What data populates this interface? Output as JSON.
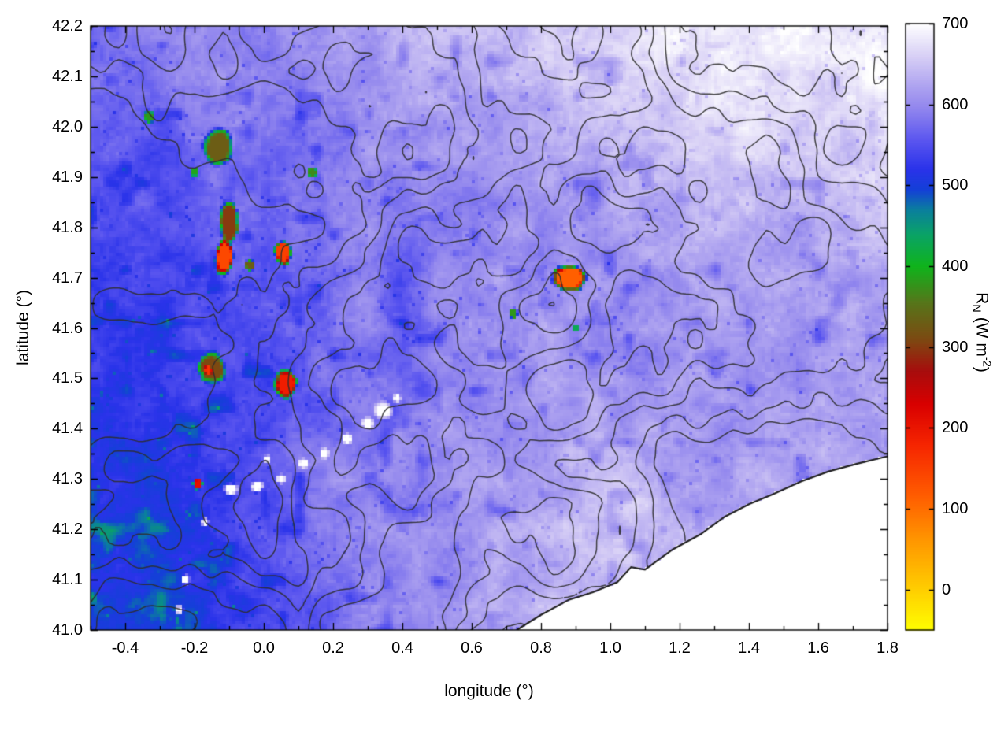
{
  "figure": {
    "background": "#ffffff",
    "frame_color": "#000000",
    "contour_color": "#2e2e2e"
  },
  "chart_data": {
    "type": "heatmap",
    "title": "",
    "xlabel": "longitude (°)",
    "ylabel": "latitude (°)",
    "x_range": [
      -0.5,
      1.8
    ],
    "y_range": [
      41.0,
      42.2
    ],
    "x_tick_labels": [
      "-0.4",
      "-0.2",
      "0.0",
      "0.2",
      "0.4",
      "0.6",
      "0.8",
      "1.0",
      "1.2",
      "1.4",
      "1.6",
      "1.8"
    ],
    "x_minor_step": 0.1,
    "y_tick_labels": [
      "41.0",
      "41.1",
      "41.2",
      "41.3",
      "41.4",
      "41.5",
      "41.6",
      "41.7",
      "41.8",
      "41.9",
      "42.0",
      "42.1",
      "42.2"
    ],
    "y_minor_step": 0.05,
    "colorbar": {
      "min": -50,
      "max": 700,
      "tick_labels": [
        "0",
        "100",
        "200",
        "300",
        "400",
        "500",
        "600",
        "700"
      ],
      "label_text": "RN (W m-2)",
      "label": {
        "base": "R",
        "sub": "N",
        "unit_pre": " (W m",
        "sup": "-2",
        "unit_post": ")"
      },
      "stops": [
        [
          -50,
          "#ffff00"
        ],
        [
          0,
          "#ffcf00"
        ],
        [
          60,
          "#ff9800"
        ],
        [
          120,
          "#ff5a00"
        ],
        [
          180,
          "#f62500"
        ],
        [
          230,
          "#d90000"
        ],
        [
          270,
          "#a80d0d"
        ],
        [
          310,
          "#7d4a12"
        ],
        [
          355,
          "#57761a"
        ],
        [
          400,
          "#10b41c"
        ],
        [
          440,
          "#0aa368"
        ],
        [
          470,
          "#0b7f9e"
        ],
        [
          495,
          "#1440d8"
        ],
        [
          520,
          "#2a33ea"
        ],
        [
          555,
          "#5a55f0"
        ],
        [
          595,
          "#9186ee"
        ],
        [
          625,
          "#b1a6f1"
        ],
        [
          660,
          "#d8d0f6"
        ],
        [
          700,
          "#ffffff"
        ]
      ]
    },
    "grid": {
      "lon0": -0.5,
      "dlon": 0.1,
      "lat0": 42.2,
      "dlat": 0.1,
      "values": [
        [
          585,
          590,
          588,
          596,
          602,
          598,
          594,
          604,
          615,
          635,
          648,
          652,
          640,
          652,
          660,
          668,
          676,
          684,
          692,
          694,
          688,
          684,
          690,
          696
        ],
        [
          578,
          583,
          580,
          592,
          598,
          594,
          590,
          600,
          610,
          622,
          630,
          626,
          634,
          642,
          650,
          658,
          664,
          672,
          682,
          686,
          678,
          672,
          682,
          692
        ],
        [
          562,
          572,
          556,
          578,
          590,
          586,
          582,
          596,
          606,
          602,
          612,
          608,
          618,
          624,
          632,
          642,
          652,
          658,
          668,
          672,
          662,
          658,
          668,
          678
        ],
        [
          552,
          562,
          546,
          562,
          580,
          576,
          572,
          590,
          600,
          596,
          602,
          596,
          606,
          612,
          616,
          622,
          632,
          638,
          642,
          648,
          642,
          638,
          648,
          658
        ],
        [
          546,
          552,
          540,
          556,
          570,
          566,
          576,
          586,
          596,
          585,
          596,
          592,
          602,
          606,
          602,
          612,
          616,
          622,
          626,
          632,
          626,
          622,
          632,
          642
        ],
        [
          540,
          546,
          536,
          550,
          560,
          556,
          570,
          580,
          590,
          560,
          600,
          606,
          612,
          602,
          596,
          606,
          612,
          616,
          622,
          626,
          622,
          616,
          622,
          632
        ],
        [
          536,
          540,
          530,
          546,
          550,
          546,
          560,
          576,
          586,
          556,
          596,
          602,
          606,
          612,
          606,
          602,
          606,
          612,
          616,
          622,
          616,
          612,
          616,
          626
        ],
        [
          526,
          530,
          520,
          536,
          540,
          536,
          550,
          570,
          580,
          562,
          596,
          602,
          606,
          612,
          616,
          606,
          602,
          606,
          612,
          616,
          612,
          606,
          612,
          622
        ],
        [
          516,
          520,
          510,
          526,
          530,
          540,
          556,
          576,
          590,
          596,
          602,
          606,
          612,
          616,
          622,
          616,
          612,
          606,
          612,
          616,
          622,
          616,
          622,
          626
        ],
        [
          510,
          516,
          506,
          520,
          535,
          560,
          580,
          600,
          592,
          596,
          602,
          606,
          616,
          626,
          636,
          646,
          642,
          626,
          616,
          622,
          626,
          622,
          626,
          632
        ],
        [
          506,
          510,
          500,
          516,
          530,
          546,
          560,
          580,
          596,
          602,
          606,
          612,
          622,
          632,
          642,
          650,
          646,
          632,
          622,
          626,
          632,
          626,
          632,
          636
        ],
        [
          500,
          506,
          496,
          510,
          526,
          540,
          556,
          576,
          590,
          600,
          606,
          616,
          626,
          636,
          646,
          652,
          646,
          636,
          626,
          632,
          636,
          632,
          636,
          640
        ],
        [
          496,
          500,
          490,
          506,
          520,
          536,
          550,
          570,
          586,
          600,
          612,
          622,
          632,
          642,
          650,
          656,
          650,
          640,
          630,
          636,
          640,
          636,
          640,
          646
        ]
      ]
    },
    "hotspots": [
      {
        "lon": -0.13,
        "lat": 41.96,
        "rx": 0.045,
        "ry": 0.04,
        "value": 330
      },
      {
        "lon": -0.33,
        "lat": 42.02,
        "rx": 0.016,
        "ry": 0.013,
        "value": 380
      },
      {
        "lon": -0.2,
        "lat": 41.91,
        "rx": 0.013,
        "ry": 0.011,
        "value": 390
      },
      {
        "lon": 0.14,
        "lat": 41.91,
        "rx": 0.016,
        "ry": 0.013,
        "value": 370
      },
      {
        "lon": -0.1,
        "lat": 41.81,
        "rx": 0.03,
        "ry": 0.05,
        "value": 300
      },
      {
        "lon": -0.115,
        "lat": 41.74,
        "rx": 0.03,
        "ry": 0.038,
        "value": 140
      },
      {
        "lon": 0.055,
        "lat": 41.75,
        "rx": 0.027,
        "ry": 0.027,
        "value": 150
      },
      {
        "lon": -0.04,
        "lat": 41.725,
        "rx": 0.015,
        "ry": 0.012,
        "value": 330
      },
      {
        "lon": 0.88,
        "lat": 41.7,
        "rx": 0.055,
        "ry": 0.026,
        "value": 115
      },
      {
        "lon": 0.72,
        "lat": 41.63,
        "rx": 0.014,
        "ry": 0.012,
        "value": 380
      },
      {
        "lon": 0.9,
        "lat": 41.6,
        "rx": 0.012,
        "ry": 0.01,
        "value": 430
      },
      {
        "lon": -0.15,
        "lat": 41.52,
        "rx": 0.042,
        "ry": 0.034,
        "value": 310
      },
      {
        "lon": -0.16,
        "lat": 41.515,
        "rx": 0.012,
        "ry": 0.01,
        "value": 160
      },
      {
        "lon": 0.065,
        "lat": 41.49,
        "rx": 0.034,
        "ry": 0.031,
        "value": 190
      },
      {
        "lon": -0.19,
        "lat": 41.29,
        "rx": 0.016,
        "ry": 0.013,
        "value": 210
      }
    ],
    "white_patches": [
      {
        "lon": 0.345,
        "lat": 41.435,
        "rx": 0.03,
        "ry": 0.02
      },
      {
        "lon": 0.3,
        "lat": 41.41,
        "rx": 0.022,
        "ry": 0.015
      },
      {
        "lon": 0.24,
        "lat": 41.38,
        "rx": 0.018,
        "ry": 0.013
      },
      {
        "lon": 0.175,
        "lat": 41.35,
        "rx": 0.016,
        "ry": 0.012
      },
      {
        "lon": 0.115,
        "lat": 41.33,
        "rx": 0.018,
        "ry": 0.012
      },
      {
        "lon": 0.05,
        "lat": 41.3,
        "rx": 0.016,
        "ry": 0.011
      },
      {
        "lon": -0.02,
        "lat": 41.285,
        "rx": 0.02,
        "ry": 0.012
      },
      {
        "lon": -0.095,
        "lat": 41.28,
        "rx": 0.022,
        "ry": 0.013
      },
      {
        "lon": 0.01,
        "lat": 41.34,
        "rx": 0.012,
        "ry": 0.009
      },
      {
        "lon": -0.17,
        "lat": 41.215,
        "rx": 0.012,
        "ry": 0.01
      },
      {
        "lon": -0.225,
        "lat": 41.1,
        "rx": 0.014,
        "ry": 0.011
      },
      {
        "lon": -0.245,
        "lat": 41.04,
        "rx": 0.014,
        "ry": 0.011
      },
      {
        "lon": 0.385,
        "lat": 41.46,
        "rx": 0.014,
        "ry": 0.011
      }
    ],
    "coastline": [
      [
        0.73,
        41.0
      ],
      [
        0.8,
        41.03
      ],
      [
        0.88,
        41.06
      ],
      [
        0.95,
        41.075
      ],
      [
        1.02,
        41.095
      ],
      [
        1.06,
        41.125
      ],
      [
        1.1,
        41.12
      ],
      [
        1.18,
        41.16
      ],
      [
        1.26,
        41.19
      ],
      [
        1.33,
        41.225
      ],
      [
        1.4,
        41.25
      ],
      [
        1.47,
        41.27
      ],
      [
        1.55,
        41.295
      ],
      [
        1.63,
        41.315
      ],
      [
        1.71,
        41.33
      ],
      [
        1.8,
        41.345
      ]
    ],
    "contours": {
      "seed": 11,
      "levels": [
        0.4,
        0.48,
        0.56,
        0.64,
        0.72
      ],
      "fx": 2.3,
      "fy": 3.1
    },
    "texture": {
      "amp_fine": 12,
      "amp_blotch": 18,
      "vein_threshold": 0.3,
      "vein_depth": 160,
      "speckle_threshold": 0.975,
      "speckle_depth": 1800
    }
  }
}
